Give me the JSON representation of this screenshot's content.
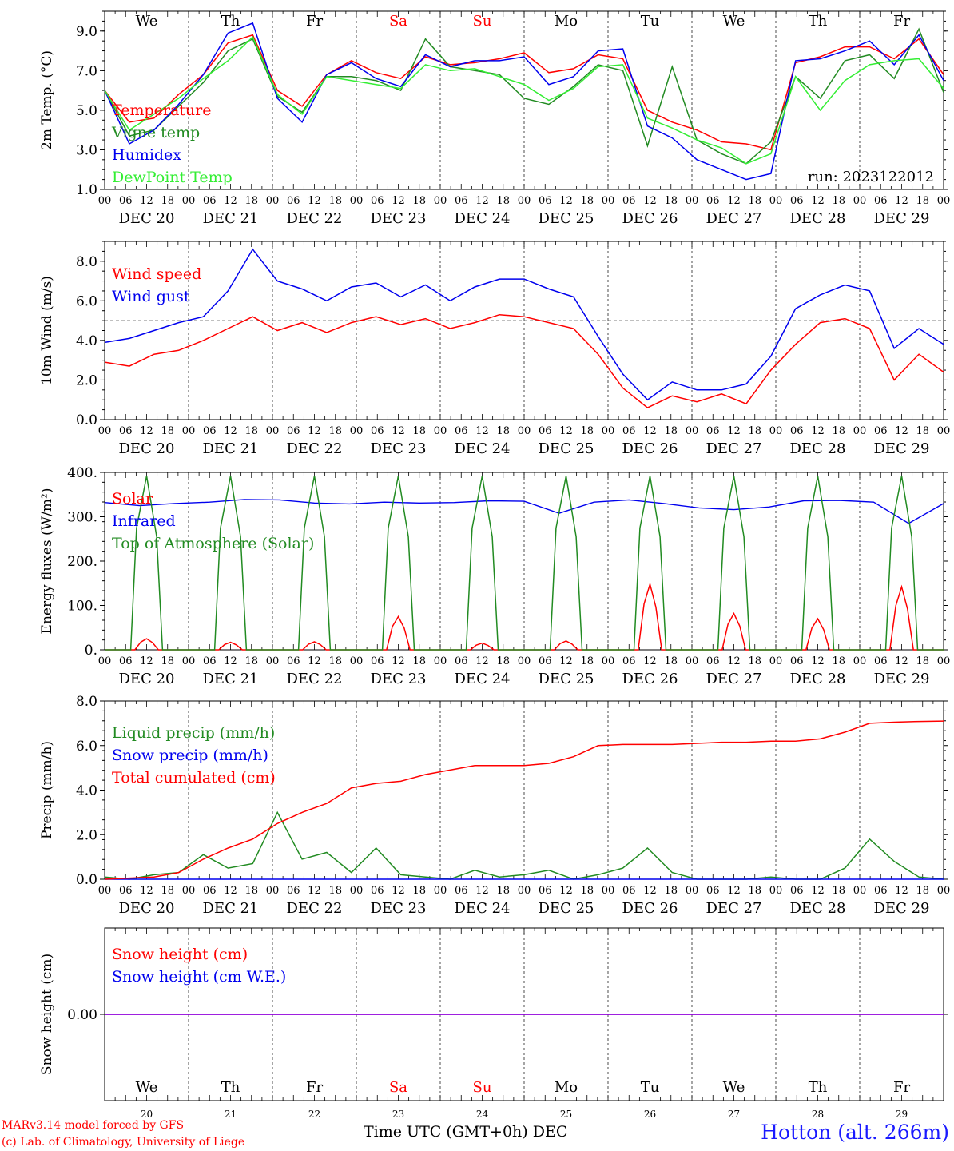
{
  "run_label": "run: 2023122012",
  "x_axis_title": "Time UTC (GMT+0h) DEC",
  "station": "Hotton (alt. 266m)",
  "credits": [
    "MARv3.14 model forced by GFS",
    "(c) Lab. of Climatology, University of Liege"
  ],
  "colors": {
    "red": "#ff0000",
    "green": "#228b22",
    "blue": "#0000ee",
    "lime": "#33ee33",
    "weekend": "#ff0000",
    "grid": "#555555"
  },
  "days": [
    {
      "dow": "We",
      "date": "DEC 20",
      "num": "20",
      "weekend": false
    },
    {
      "dow": "Th",
      "date": "DEC 21",
      "num": "21",
      "weekend": false
    },
    {
      "dow": "Fr",
      "date": "DEC 22",
      "num": "22",
      "weekend": false
    },
    {
      "dow": "Sa",
      "date": "DEC 23",
      "num": "23",
      "weekend": true
    },
    {
      "dow": "Su",
      "date": "DEC 24",
      "num": "24",
      "weekend": true
    },
    {
      "dow": "Mo",
      "date": "DEC 25",
      "num": "25",
      "weekend": false
    },
    {
      "dow": "Tu",
      "date": "DEC 26",
      "num": "26",
      "weekend": false
    },
    {
      "dow": "We",
      "date": "DEC 27",
      "num": "27",
      "weekend": false
    },
    {
      "dow": "Th",
      "date": "DEC 28",
      "num": "28",
      "weekend": false
    },
    {
      "dow": "Fr",
      "date": "DEC 29",
      "num": "29",
      "weekend": false
    }
  ],
  "hour_ticks": [
    "00",
    "06",
    "12",
    "18"
  ],
  "chart_data": [
    {
      "type": "line",
      "ylabel": "2m Temp. (°C)",
      "ylim": [
        1,
        10
      ],
      "yticks": [
        "1.0",
        "3.0",
        "5.0",
        "7.0",
        "9.0"
      ],
      "x_hours": [
        0,
        6,
        12,
        18,
        24,
        30,
        36,
        42,
        48,
        54,
        60,
        66,
        72,
        78,
        84,
        90,
        96,
        102,
        108,
        114,
        120,
        126,
        132,
        138,
        144,
        150,
        156,
        162,
        168,
        174,
        180,
        186,
        192,
        198,
        204,
        210,
        216,
        222,
        228,
        234,
        240
      ],
      "series": [
        {
          "name": "Temperature",
          "color": "red",
          "values": [
            6.0,
            4.4,
            4.6,
            5.8,
            6.8,
            8.4,
            8.8,
            6.0,
            5.2,
            6.8,
            7.5,
            6.9,
            6.6,
            7.7,
            7.3,
            7.4,
            7.6,
            7.9,
            6.9,
            7.1,
            7.8,
            7.6,
            5.0,
            4.4,
            4.0,
            3.4,
            3.3,
            3.0,
            7.4,
            7.7,
            8.2,
            8.2,
            7.6,
            8.6,
            6.8
          ]
        },
        {
          "name": "Vigne temp",
          "color": "green",
          "values": [
            6.0,
            3.7,
            4.0,
            5.2,
            6.4,
            8.0,
            8.6,
            5.7,
            4.9,
            6.7,
            6.7,
            6.5,
            6.0,
            8.6,
            7.2,
            7.0,
            6.8,
            5.6,
            5.3,
            6.2,
            7.3,
            7.0,
            3.2,
            7.2,
            3.5,
            2.8,
            2.3,
            3.4,
            6.7,
            5.6,
            7.5,
            7.8,
            6.6,
            9.1,
            5.9
          ]
        },
        {
          "name": "Humidex",
          "color": "blue",
          "values": [
            6.0,
            3.3,
            4.0,
            5.3,
            6.8,
            8.9,
            9.4,
            5.6,
            4.4,
            6.8,
            7.4,
            6.6,
            6.2,
            7.8,
            7.2,
            7.5,
            7.5,
            7.7,
            6.3,
            6.7,
            8.0,
            8.1,
            4.2,
            3.6,
            2.5,
            2.0,
            1.5,
            1.8,
            7.5,
            7.6,
            8.0,
            8.5,
            7.3,
            8.8,
            6.5
          ]
        },
        {
          "name": "DewPoint Temp",
          "color": "lime",
          "values": [
            6.0,
            4.0,
            4.8,
            5.6,
            6.6,
            7.5,
            8.7,
            5.8,
            4.8,
            6.7,
            6.5,
            6.3,
            6.1,
            7.3,
            7.0,
            7.1,
            6.7,
            6.3,
            5.5,
            6.1,
            7.2,
            7.3,
            4.6,
            4.1,
            3.5,
            3.1,
            2.3,
            2.8,
            6.7,
            5.0,
            6.5,
            7.3,
            7.5,
            7.6,
            6.1
          ]
        }
      ]
    },
    {
      "type": "line",
      "ylabel": "10m Wind (m/s)",
      "ylim": [
        0,
        9
      ],
      "yticks": [
        "0.0",
        "2.0",
        "4.0",
        "6.0",
        "8.0"
      ],
      "reference_line": 5.0,
      "series": [
        {
          "name": "Wind speed",
          "color": "red",
          "values": [
            2.9,
            2.7,
            3.3,
            3.5,
            4.0,
            4.6,
            5.2,
            4.5,
            4.9,
            4.4,
            4.9,
            5.2,
            4.8,
            5.1,
            4.6,
            4.9,
            5.3,
            5.2,
            4.9,
            4.6,
            3.3,
            1.6,
            0.6,
            1.2,
            0.9,
            1.3,
            0.8,
            2.5,
            3.8,
            4.9,
            5.1,
            4.6,
            2.0,
            3.3,
            2.4
          ]
        },
        {
          "name": "Wind gust",
          "color": "blue",
          "values": [
            3.9,
            4.1,
            4.5,
            4.9,
            5.2,
            6.5,
            8.6,
            7.0,
            6.6,
            6.0,
            6.7,
            6.9,
            6.2,
            6.8,
            6.0,
            6.7,
            7.1,
            7.1,
            6.6,
            6.2,
            4.2,
            2.3,
            1.0,
            1.9,
            1.5,
            1.5,
            1.8,
            3.2,
            5.6,
            6.3,
            6.8,
            6.5,
            3.6,
            4.6,
            3.8
          ]
        }
      ]
    },
    {
      "type": "line",
      "ylabel": "Energy fluxes (W/m²)",
      "ylim": [
        0,
        400
      ],
      "yticks": [
        "0.",
        "100.",
        "200.",
        "300.",
        "400."
      ],
      "series": [
        {
          "name": "Solar",
          "color": "red",
          "peaks": [
            25,
            17,
            18,
            75,
            15,
            20,
            148,
            82,
            70,
            142
          ]
        },
        {
          "name": "Infrared",
          "color": "blue",
          "values": [
            332,
            325,
            330,
            333,
            339,
            338,
            331,
            329,
            333,
            331,
            332,
            336,
            335,
            308,
            333,
            338,
            330,
            320,
            316,
            322,
            336,
            337,
            333,
            285,
            330
          ]
        },
        {
          "name": "Top of Atmosphere (Solar)",
          "color": "green",
          "peaks": [
            392,
            392,
            392,
            392,
            392,
            392,
            392,
            392,
            392,
            392
          ]
        }
      ]
    },
    {
      "type": "line",
      "ylabel": "Precip (mm/h)",
      "ylim": [
        0,
        8
      ],
      "yticks": [
        "0.0",
        "2.0",
        "4.0",
        "6.0",
        "8.0"
      ],
      "series": [
        {
          "name": "Liquid precip (mm/h)",
          "color": "green",
          "values": [
            0.1,
            0.0,
            0.2,
            0.3,
            1.1,
            0.5,
            0.7,
            3.0,
            0.9,
            1.2,
            0.3,
            1.4,
            0.2,
            0.1,
            0.0,
            0.4,
            0.1,
            0.2,
            0.4,
            0.0,
            0.2,
            0.5,
            1.4,
            0.3,
            0.0,
            0.0,
            0.0,
            0.1,
            0.0,
            0.0,
            0.5,
            1.8,
            0.8,
            0.1,
            0.0
          ]
        },
        {
          "name": "Snow precip (mm/h)",
          "color": "blue",
          "values": [
            0,
            0,
            0,
            0,
            0,
            0,
            0,
            0,
            0,
            0,
            0,
            0,
            0,
            0,
            0,
            0,
            0,
            0,
            0,
            0,
            0,
            0,
            0,
            0,
            0,
            0,
            0,
            0,
            0,
            0,
            0,
            0,
            0,
            0,
            0
          ]
        },
        {
          "name": "Total cumulated (cm)",
          "color": "red",
          "values": [
            0.0,
            0.05,
            0.1,
            0.3,
            0.9,
            1.4,
            1.8,
            2.5,
            3.0,
            3.4,
            4.1,
            4.3,
            4.4,
            4.7,
            4.9,
            5.1,
            5.1,
            5.1,
            5.2,
            5.5,
            6.0,
            6.05,
            6.05,
            6.05,
            6.1,
            6.15,
            6.15,
            6.2,
            6.2,
            6.3,
            6.6,
            7.0,
            7.05,
            7.08,
            7.1
          ]
        }
      ]
    },
    {
      "type": "line",
      "ylabel": "Snow height (cm)",
      "yticks": [
        "0.00"
      ],
      "series": [
        {
          "name": "Snow height (cm)",
          "color": "red",
          "values": [
            0,
            0
          ]
        },
        {
          "name": "Snow height (cm W.E.)",
          "color": "blue",
          "values": [
            0,
            0
          ]
        }
      ]
    }
  ]
}
